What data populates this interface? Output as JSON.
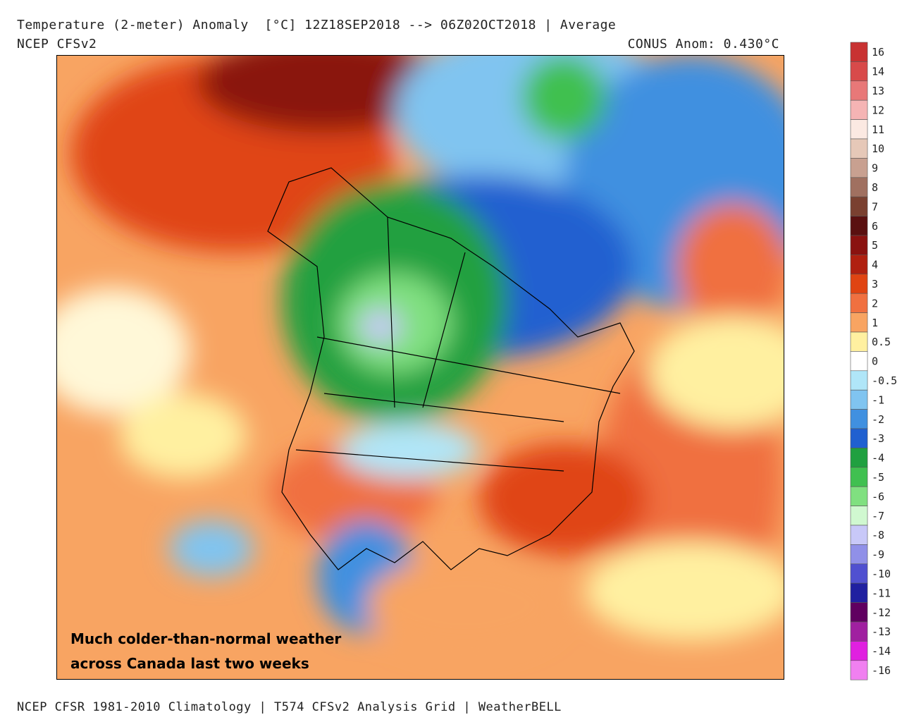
{
  "header": {
    "title": "Temperature (2-meter) Anomaly  [°C] 12Z18SEP2018 --> 06Z02OCT2018 | Average",
    "model": "NCEP CFSv2",
    "conus_anomaly": "CONUS Anom: 0.430°C"
  },
  "annotation": [
    "Much colder-than-normal weather",
    "across Canada last two weeks"
  ],
  "footer": "NCEP CFSR 1981-2010 Climatology | T574 CFSv2 Analysis Grid | WeatherBELL",
  "colorbar": [
    {
      "value": 16,
      "color": "#c83232"
    },
    {
      "value": 14,
      "color": "#d84a4a"
    },
    {
      "value": 13,
      "color": "#e87878"
    },
    {
      "value": 12,
      "color": "#f5b4b4"
    },
    {
      "value": 11,
      "color": "#fbe9e2"
    },
    {
      "value": 10,
      "color": "#e6c8b8"
    },
    {
      "value": 9,
      "color": "#c8a090"
    },
    {
      "value": 8,
      "color": "#a07060"
    },
    {
      "value": 7,
      "color": "#7a4030"
    },
    {
      "value": 6,
      "color": "#5a1010"
    },
    {
      "value": 5,
      "color": "#8a1210"
    },
    {
      "value": 4,
      "color": "#b02010"
    },
    {
      "value": 3,
      "color": "#e04412"
    },
    {
      "value": 2,
      "color": "#f07040"
    },
    {
      "value": 1,
      "color": "#f8a462"
    },
    {
      "value": 0.5,
      "color": "#fff0a0"
    },
    {
      "value": 0,
      "color": "#ffffff"
    },
    {
      "value": -0.5,
      "color": "#b0e6f8"
    },
    {
      "value": -1,
      "color": "#80c4f0"
    },
    {
      "value": -2,
      "color": "#4090e0"
    },
    {
      "value": -3,
      "color": "#2060d0"
    },
    {
      "value": -4,
      "color": "#20a040"
    },
    {
      "value": -5,
      "color": "#40c050"
    },
    {
      "value": -6,
      "color": "#80e080"
    },
    {
      "value": -7,
      "color": "#d0f8d0"
    },
    {
      "value": -8,
      "color": "#c8c8f8"
    },
    {
      "value": -9,
      "color": "#9090e8"
    },
    {
      "value": -10,
      "color": "#5050d0"
    },
    {
      "value": -11,
      "color": "#2020a0"
    },
    {
      "value": -12,
      "color": "#600060"
    },
    {
      "value": -13,
      "color": "#a020a0"
    },
    {
      "value": -14,
      "color": "#e020e0"
    },
    {
      "value": -16,
      "color": "#f080f0"
    }
  ]
}
